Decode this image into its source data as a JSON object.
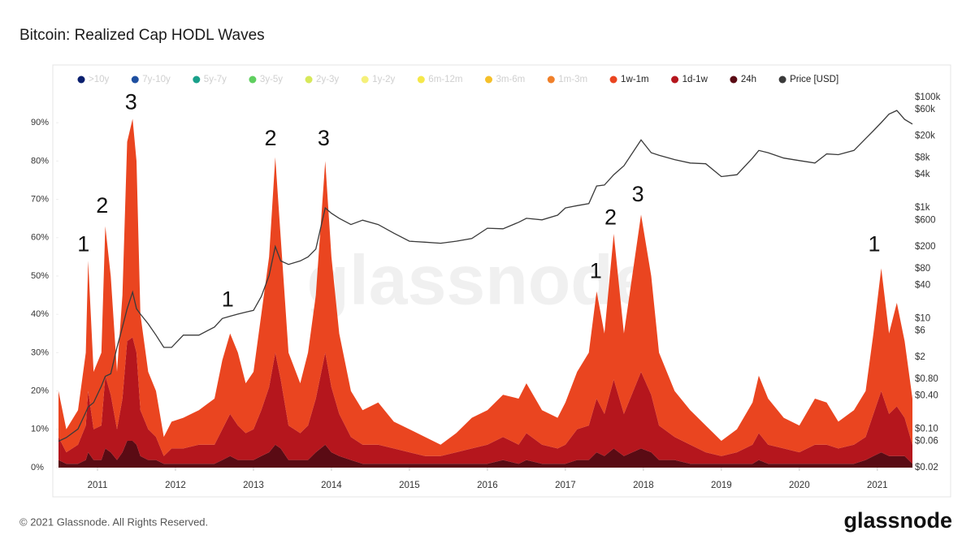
{
  "chart_data": {
    "type": "stacked_area",
    "title": "Bitcoin: Realized Cap HODL Waves",
    "watermark": "glassnode",
    "footer": "© 2021 Glassnode. All Rights Reserved.",
    "logo": "glassnode",
    "xlim": [
      2010.5,
      2021.45
    ],
    "xticks": [
      2011,
      2012,
      2013,
      2014,
      2015,
      2016,
      2017,
      2018,
      2019,
      2020,
      2021
    ],
    "ylim": [
      0,
      96.6
    ],
    "yticks": [
      {
        "value": 0,
        "label": "0%"
      },
      {
        "value": 10,
        "label": "10%"
      },
      {
        "value": 20,
        "label": "20%"
      },
      {
        "value": 30,
        "label": "30%"
      },
      {
        "value": 40,
        "label": "40%"
      },
      {
        "value": 50,
        "label": "50%"
      },
      {
        "value": 60,
        "label": "60%"
      },
      {
        "value": 70,
        "label": "70%"
      },
      {
        "value": 80,
        "label": "80%"
      },
      {
        "value": 90,
        "label": "90%"
      }
    ],
    "y2lim": [
      0.02,
      100000
    ],
    "y2log": true,
    "y2ticks": [
      {
        "value": 100000,
        "label": "$100k"
      },
      {
        "value": 60000,
        "label": "$60k"
      },
      {
        "value": 20000,
        "label": "$20k"
      },
      {
        "value": 8000,
        "label": "$8k"
      },
      {
        "value": 4000,
        "label": "$4k"
      },
      {
        "value": 1000,
        "label": "$1k"
      },
      {
        "value": 600,
        "label": "$600"
      },
      {
        "value": 200,
        "label": "$200"
      },
      {
        "value": 80,
        "label": "$80"
      },
      {
        "value": 40,
        "label": "$40"
      },
      {
        "value": 10,
        "label": "$10"
      },
      {
        "value": 6,
        "label": "$6"
      },
      {
        "value": 2,
        "label": "$2"
      },
      {
        "value": 0.8,
        "label": "$0.80"
      },
      {
        "value": 0.4,
        "label": "$0.40"
      },
      {
        "value": 0.1,
        "label": "$0.10"
      },
      {
        "value": 0.06,
        "label": "$0.06"
      },
      {
        "value": 0.02,
        "label": "$0.02"
      }
    ],
    "inactive_series": [
      {
        "name": ">10y",
        "color": "#0a1f6e"
      },
      {
        "name": "7y-10y",
        "color": "#1e4fa0"
      },
      {
        "name": "5y-7y",
        "color": "#19a08a"
      },
      {
        "name": "3y-5y",
        "color": "#5fcf5f"
      },
      {
        "name": "2y-3y",
        "color": "#d7e85a"
      },
      {
        "name": "1y-2y",
        "color": "#f5f07a"
      },
      {
        "name": "6m-12m",
        "color": "#f5e84a"
      },
      {
        "name": "3m-6m",
        "color": "#f5c02a"
      },
      {
        "name": "1m-3m",
        "color": "#f0802a"
      }
    ],
    "x": [
      2010.5,
      2010.6,
      2010.75,
      2010.85,
      2010.88,
      2010.95,
      2011.05,
      2011.1,
      2011.17,
      2011.25,
      2011.32,
      2011.38,
      2011.45,
      2011.5,
      2011.55,
      2011.65,
      2011.75,
      2011.85,
      2011.95,
      2012.1,
      2012.3,
      2012.5,
      2012.6,
      2012.7,
      2012.8,
      2012.9,
      2013.0,
      2013.1,
      2013.2,
      2013.28,
      2013.35,
      2013.45,
      2013.6,
      2013.7,
      2013.8,
      2013.92,
      2014.0,
      2014.1,
      2014.25,
      2014.4,
      2014.6,
      2014.8,
      2015.0,
      2015.2,
      2015.4,
      2015.6,
      2015.8,
      2016.0,
      2016.2,
      2016.4,
      2016.5,
      2016.7,
      2016.9,
      2017.0,
      2017.15,
      2017.3,
      2017.4,
      2017.5,
      2017.62,
      2017.75,
      2017.97,
      2018.1,
      2018.2,
      2018.4,
      2018.6,
      2018.8,
      2019.0,
      2019.2,
      2019.4,
      2019.48,
      2019.6,
      2019.8,
      2020.0,
      2020.2,
      2020.35,
      2020.5,
      2020.7,
      2020.85,
      2020.95,
      2021.05,
      2021.15,
      2021.25,
      2021.35,
      2021.45
    ],
    "series": [
      {
        "name": "1w-1m",
        "color": "#ea4520",
        "values": [
          12,
          6,
          9,
          19,
          34,
          15,
          19,
          39,
          31,
          15,
          27,
          52,
          57,
          50,
          25,
          15,
          12,
          5,
          7,
          8,
          9,
          12,
          18,
          21,
          19,
          13,
          15,
          25,
          34,
          51,
          37,
          19,
          13,
          19,
          27,
          50,
          34,
          21,
          12,
          9,
          11,
          7,
          6,
          5,
          3,
          5,
          8,
          9,
          11,
          12,
          13,
          9,
          8,
          11,
          15,
          19,
          28,
          21,
          38,
          21,
          41,
          31,
          19,
          12,
          9,
          7,
          4,
          6,
          11,
          15,
          12,
          8,
          7,
          12,
          11,
          7,
          9,
          12,
          21,
          32,
          21,
          27,
          20,
          12
        ]
      },
      {
        "name": "1d-1w",
        "color": "#b5161d",
        "values": [
          6,
          3,
          5,
          9,
          16,
          8,
          9,
          19,
          15,
          8,
          14,
          26,
          27,
          24,
          12,
          8,
          6,
          2,
          4,
          4,
          5,
          5,
          8,
          11,
          9,
          7,
          8,
          12,
          17,
          24,
          18,
          9,
          7,
          9,
          14,
          24,
          17,
          11,
          6,
          5,
          5,
          4,
          3,
          2,
          2,
          3,
          4,
          5,
          6,
          5,
          7,
          5,
          4,
          5,
          8,
          9,
          14,
          11,
          18,
          11,
          20,
          15,
          9,
          6,
          5,
          3,
          2,
          3,
          5,
          7,
          5,
          4,
          3,
          5,
          5,
          4,
          5,
          6,
          11,
          16,
          11,
          13,
          10,
          5
        ]
      },
      {
        "name": "24h",
        "color": "#5a0b14",
        "values": [
          2,
          1,
          1,
          2,
          4,
          2,
          2,
          5,
          4,
          2,
          4,
          7,
          7,
          6,
          3,
          2,
          2,
          1,
          1,
          1,
          1,
          1,
          2,
          3,
          2,
          2,
          2,
          3,
          4,
          6,
          5,
          2,
          2,
          2,
          4,
          6,
          4,
          3,
          2,
          1,
          1,
          1,
          1,
          1,
          1,
          1,
          1,
          1,
          2,
          1,
          2,
          1,
          1,
          1,
          2,
          2,
          4,
          3,
          5,
          3,
          5,
          4,
          2,
          2,
          1,
          1,
          1,
          1,
          1,
          2,
          1,
          1,
          1,
          1,
          1,
          1,
          1,
          2,
          3,
          4,
          3,
          3,
          3,
          1
        ]
      },
      {
        "name": "Price [USD]",
        "color": "#3a3a3a",
        "axis": "y2",
        "values": [
          0.06,
          0.07,
          0.1,
          0.2,
          0.25,
          0.3,
          0.6,
          0.9,
          1,
          3,
          7,
          15,
          30,
          15,
          12,
          8,
          5,
          3,
          3,
          5,
          5,
          7,
          10,
          11,
          12,
          13,
          14,
          25,
          60,
          200,
          110,
          95,
          110,
          130,
          180,
          1000,
          800,
          650,
          500,
          600,
          500,
          350,
          250,
          240,
          230,
          250,
          280,
          430,
          420,
          550,
          650,
          610,
          740,
          1000,
          1100,
          1200,
          2500,
          2600,
          4000,
          5800,
          17000,
          10000,
          9000,
          7500,
          6500,
          6300,
          3700,
          4000,
          8000,
          11000,
          10000,
          8000,
          7200,
          6500,
          9500,
          9200,
          11000,
          18000,
          25000,
          35000,
          50000,
          58000,
          40000,
          33000
        ]
      }
    ],
    "annotations": [
      {
        "text": "1",
        "x": 2010.82,
        "y": 58
      },
      {
        "text": "2",
        "x": 2011.06,
        "y": 68
      },
      {
        "text": "3",
        "x": 2011.43,
        "y": 95
      },
      {
        "text": "1",
        "x": 2012.67,
        "y": 43.6
      },
      {
        "text": "2",
        "x": 2013.22,
        "y": 85.6
      },
      {
        "text": "3",
        "x": 2013.9,
        "y": 85.6
      },
      {
        "text": "1",
        "x": 2017.39,
        "y": 51
      },
      {
        "text": "2",
        "x": 2017.58,
        "y": 65
      },
      {
        "text": "3",
        "x": 2017.93,
        "y": 71
      },
      {
        "text": "1",
        "x": 2020.96,
        "y": 58
      }
    ]
  }
}
